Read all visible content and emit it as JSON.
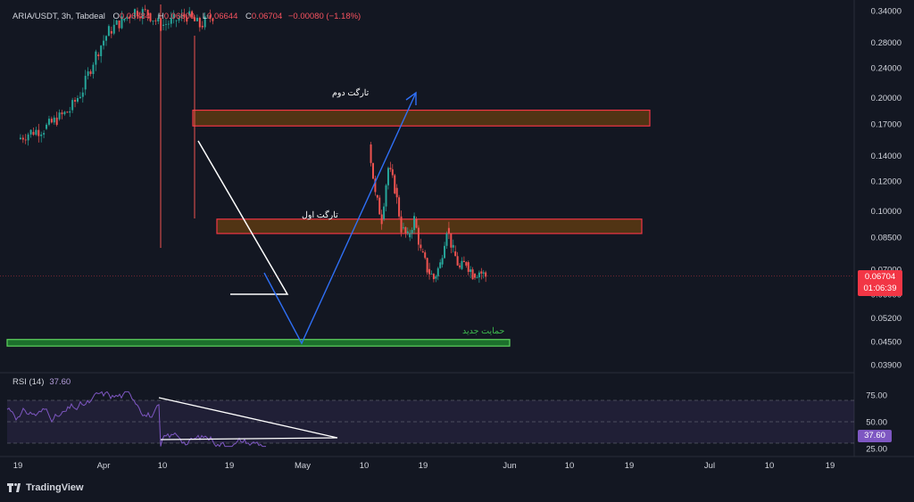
{
  "legend": {
    "symbol": "ARIA/USDT, 3h, Tabdeal",
    "open_label": "O",
    "open": "0.06784",
    "high_label": "H",
    "high": "0.06800",
    "low_label": "L",
    "low": "0.06644",
    "close_label": "C",
    "close": "0.06704",
    "change": "−0.00080 (−1.18%)"
  },
  "rsi_legend": {
    "label": "RSI (14)",
    "value": "37.60"
  },
  "price_tag": {
    "price": "0.06704",
    "countdown": "01:06:39"
  },
  "rsi_tag": {
    "value": "37.60"
  },
  "annotations": {
    "target1": "تارگت اول",
    "target2": "تارگت دوم",
    "support": "حمایت جدید"
  },
  "brand": "TradingView",
  "colors": {
    "bg": "#131722",
    "up": "#26a69a",
    "down": "#ef5350",
    "zone_fill": "#5d3a12",
    "zone_border": "#f23645",
    "support_fill": "#1e7a2e",
    "support_border": "#5fd35f",
    "arrow": "#2f6ff5",
    "rsi_line": "#7e57c2"
  },
  "chart_data": {
    "type": "candlestick",
    "title": "ARIA/USDT, 3h, Tabdeal",
    "y_axis": {
      "scale": "log",
      "ticks": [
        0.34,
        0.28,
        0.24,
        0.2,
        0.17,
        0.14,
        0.12,
        0.1,
        0.085,
        0.07,
        0.06,
        0.052,
        0.045,
        0.039
      ],
      "tick_labels": [
        "0.34000",
        "0.28000",
        "0.24000",
        "0.20000",
        "0.17000",
        "0.14000",
        "0.12000",
        "0.10000",
        "0.08500",
        "0.07000",
        "0.06000",
        "0.05200",
        "0.04500",
        "0.03900"
      ]
    },
    "x_axis": {
      "ticks": [
        "19",
        "Apr",
        "10",
        "19",
        "May",
        "10",
        "19",
        "Jun",
        "10",
        "19",
        "Jul",
        "10",
        "19"
      ]
    },
    "last_price": 0.06704,
    "series": [
      {
        "name": "price-early",
        "segment": "Mar 19 – Apr 4",
        "points": [
          [
            0,
            0.155
          ],
          [
            2,
            0.162
          ],
          [
            4,
            0.165
          ],
          [
            6,
            0.175
          ],
          [
            8,
            0.185
          ],
          [
            10,
            0.21
          ],
          [
            12,
            0.26
          ],
          [
            14,
            0.3
          ],
          [
            16,
            0.32
          ],
          [
            18,
            0.34
          ],
          [
            20,
            0.335
          ],
          [
            22,
            0.31
          ],
          [
            24,
            0.32
          ],
          [
            26,
            0.33
          ],
          [
            28,
            0.31
          ],
          [
            30,
            0.33
          ]
        ]
      },
      {
        "name": "price-late",
        "segment": "Apr 14 – Apr 25",
        "points": [
          [
            54,
            0.15
          ],
          [
            55,
            0.11
          ],
          [
            56,
            0.095
          ],
          [
            57,
            0.13
          ],
          [
            58,
            0.115
          ],
          [
            59,
            0.09
          ],
          [
            60,
            0.085
          ],
          [
            61,
            0.095
          ],
          [
            62,
            0.078
          ],
          [
            63,
            0.07
          ],
          [
            64,
            0.066
          ],
          [
            65,
            0.072
          ],
          [
            66,
            0.09
          ],
          [
            67,
            0.078
          ],
          [
            68,
            0.07
          ],
          [
            69,
            0.073
          ],
          [
            70,
            0.068
          ],
          [
            71,
            0.069
          ],
          [
            72,
            0.067
          ]
        ]
      }
    ],
    "zones": [
      {
        "name": "target-2",
        "low": 0.168,
        "high": 0.185
      },
      {
        "name": "target-1",
        "low": 0.087,
        "high": 0.095
      },
      {
        "name": "support",
        "low": 0.0437,
        "high": 0.0455
      }
    ],
    "rsi": {
      "period": 14,
      "value": 37.6,
      "levels": [
        30,
        50,
        70
      ],
      "ticks": [
        "75.00",
        "50.00",
        "25.00"
      ]
    }
  }
}
